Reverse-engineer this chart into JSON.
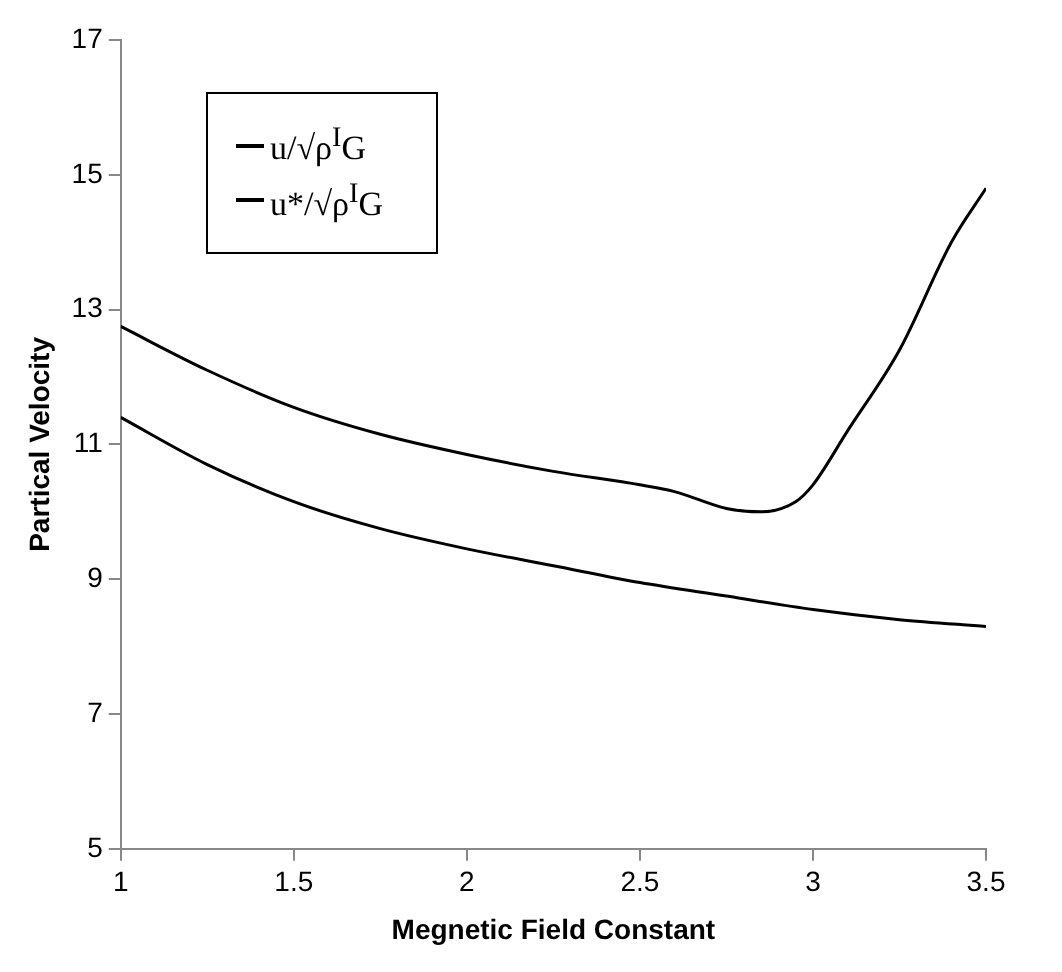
{
  "chart_data": {
    "type": "line",
    "xlabel": "Megnetic Field Constant",
    "ylabel": "Partical Velocity",
    "xlim": [
      1,
      3.5
    ],
    "xticks": [
      1,
      1.5,
      2,
      2.5,
      3,
      3.5
    ],
    "ylim": [
      5,
      17
    ],
    "yticks": [
      5,
      7,
      9,
      11,
      13,
      15,
      17
    ],
    "grid": false,
    "legend": "top left",
    "marker": "none",
    "line_style": "solid",
    "series": [
      {
        "name": "u/√ρ$^{I}$G",
        "color": "#000000",
        "x": [
          1,
          1.25,
          1.5,
          1.75,
          2,
          2.25,
          2.5,
          2.6,
          2.75,
          2.85,
          2.95,
          3,
          3.1,
          3.25,
          3.4,
          3.5
        ],
        "values": [
          12.75,
          12.1,
          11.55,
          11.15,
          10.85,
          10.6,
          10.4,
          10.3,
          10.05,
          10,
          10.15,
          10.4,
          11.2,
          12.4,
          14,
          14.8
        ]
      },
      {
        "name": "u*/√ρ$^{I}$G",
        "color": "#000000",
        "x": [
          1,
          1.25,
          1.5,
          1.75,
          2,
          2.25,
          2.5,
          2.75,
          3,
          3.25,
          3.5
        ],
        "values": [
          11.4,
          10.7,
          10.15,
          9.75,
          9.45,
          9.2,
          8.95,
          8.75,
          8.55,
          8.4,
          8.3
        ]
      }
    ]
  }
}
